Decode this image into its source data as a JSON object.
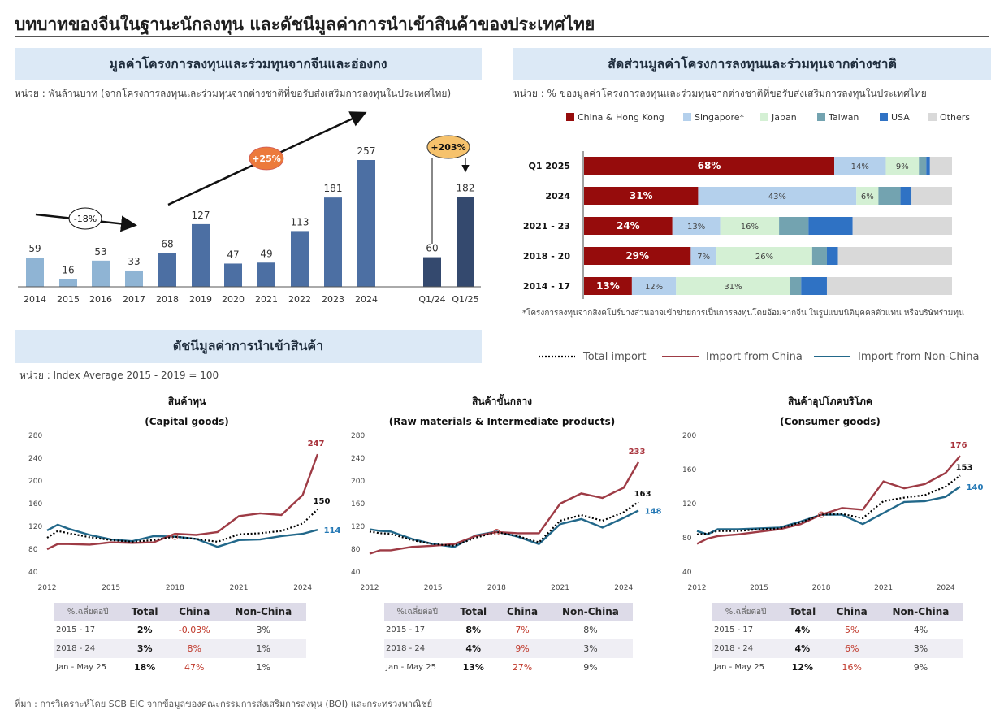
{
  "page": {
    "title": "บทบาทของจีนในฐานะนักลงทุน และดัชนีมูลค่าการนำเข้าสินค้าของประเทศไทย",
    "source": "ที่มา : การวิเคราะห์โดย SCB EIC จากข้อมูลของคณะกรรมการส่งเสริมการลงทุน (BOI) และกระทรวงพาณิชย์"
  },
  "investment_panel": {
    "heading": "มูลค่าโครงการลงทุนและร่วมทุนจากจีนและฮ่องกง",
    "unit": "หน่วย : พันล้านบาท (จากโครงการลงทุนและร่วมทุนจากต่างชาติที่ขอรับส่งเสริมการลงทุนในประเทศไทย)",
    "annotations": {
      "decline": "-18%",
      "growth": "+25%",
      "q1_growth": "+203%"
    }
  },
  "share_panel": {
    "heading": "สัดส่วนมูลค่าโครงการลงทุนและร่วมทุนจากต่างชาติ",
    "unit": "หน่วย : % ของมูลค่าโครงการลงทุนและร่วมทุนจากต่างชาติที่ขอรับส่งเสริมการลงทุนในประเทศไทย",
    "footnote": "*โครงการลงทุนจากสิงคโปร์บางส่วนอาจเข้าข่ายการเป็นการลงทุนโดยอ้อมจากจีน  ในรูปแบบนิติบุคคลตัวแทน  หรือบริษัทร่วมทุน"
  },
  "import_panel": {
    "heading": "ดัชนีมูลค่าการนำเข้าสินค้า",
    "unit": "หน่วย : Index Average 2015 - 2019 = 100",
    "legend": [
      {
        "name": "Total import",
        "color": "#000000",
        "style": "dotted"
      },
      {
        "name": "Import from China",
        "color": "#9e3b45",
        "style": "solid"
      },
      {
        "name": "Import from Non-China",
        "color": "#22688a",
        "style": "solid"
      }
    ]
  },
  "chart_data": [
    {
      "type": "bar",
      "categories": [
        "2014",
        "2015",
        "2016",
        "2017",
        "2018",
        "2019",
        "2020",
        "2021",
        "2022",
        "2023",
        "2024",
        "Q1/24",
        "Q1/25"
      ],
      "values": [
        59,
        16,
        53,
        33,
        68,
        127,
        47,
        49,
        113,
        181,
        257,
        60,
        182
      ],
      "ylim": [
        0,
        290
      ],
      "colors": {
        "early": "#8fb4d4",
        "mid": "#4c6fa3",
        "quarter": "#34496e"
      }
    },
    {
      "type": "bar",
      "orientation": "horizontal-stacked-100",
      "categories": [
        "Q1 2025",
        "2024",
        "2021 - 23",
        "2018 - 20",
        "2014 - 17"
      ],
      "series": [
        {
          "name": "China & Hong Kong",
          "color": "#960c0c",
          "values": [
            68,
            31,
            24,
            29,
            13
          ]
        },
        {
          "name": "Singapore*",
          "color": "#b4d0ec",
          "values": [
            14,
            43,
            13,
            7,
            12
          ]
        },
        {
          "name": "Japan",
          "color": "#d4f0d4",
          "values": [
            9,
            6,
            16,
            26,
            31
          ]
        },
        {
          "name": "Taiwan",
          "color": "#73a3b0",
          "values": [
            2,
            6,
            8,
            4,
            3
          ]
        },
        {
          "name": "USA",
          "color": "#2f72c4",
          "values": [
            1,
            3,
            12,
            3,
            7
          ]
        },
        {
          "name": "Others",
          "color": "#d9d9d9",
          "values": [
            6,
            11,
            27,
            31,
            34
          ]
        }
      ]
    },
    {
      "type": "line",
      "title": "สินค้าทุน",
      "subtitle": "(Capital goods)",
      "ylim": [
        40,
        280
      ],
      "yticks": [
        40,
        80,
        120,
        160,
        200,
        240,
        280
      ],
      "xticks": [
        "2012",
        "2015",
        "2018",
        "2021",
        "2024"
      ],
      "x": [
        2012,
        2012.5,
        2013,
        2014,
        2015,
        2016,
        2017,
        2018,
        2019,
        2020,
        2021,
        2022,
        2023,
        2024,
        2024.7
      ],
      "series": [
        {
          "name": "Total import",
          "values": [
            100,
            112,
            108,
            101,
            96,
            93,
            96,
            102,
            98,
            93,
            106,
            108,
            112,
            125,
            150
          ]
        },
        {
          "name": "Import from China",
          "values": [
            80,
            89,
            89,
            88,
            92,
            91,
            92,
            107,
            105,
            110,
            138,
            143,
            140,
            175,
            247
          ]
        },
        {
          "name": "Import from Non-China",
          "values": [
            113,
            123,
            116,
            105,
            97,
            94,
            103,
            102,
            98,
            84,
            96,
            97,
            103,
            107,
            114
          ]
        }
      ],
      "end_labels": {
        "total": "150",
        "china": "247",
        "non_china": "114"
      }
    },
    {
      "type": "line",
      "title": "สินค้าขั้นกลาง",
      "subtitle": "(Raw materials & Intermediate products)",
      "ylim": [
        40,
        280
      ],
      "yticks": [
        40,
        80,
        120,
        160,
        200,
        240,
        280
      ],
      "xticks": [
        "2012",
        "2015",
        "2018",
        "2021",
        "2024"
      ],
      "x": [
        2012,
        2012.5,
        2013,
        2014,
        2015,
        2016,
        2017,
        2018,
        2019,
        2020,
        2021,
        2022,
        2023,
        2024,
        2024.7
      ],
      "series": [
        {
          "name": "Total import",
          "values": [
            111,
            108,
            107,
            96,
            89,
            86,
            100,
            110,
            103,
            92,
            130,
            140,
            130,
            145,
            163
          ]
        },
        {
          "name": "Import from China",
          "values": [
            72,
            78,
            78,
            84,
            86,
            89,
            103,
            110,
            108,
            108,
            160,
            178,
            170,
            188,
            233
          ]
        },
        {
          "name": "Import from Non-China",
          "values": [
            115,
            112,
            111,
            98,
            89,
            84,
            104,
            111,
            102,
            89,
            124,
            133,
            118,
            135,
            148
          ]
        }
      ],
      "end_labels": {
        "total": "163",
        "china": "233",
        "non_china": "148"
      }
    },
    {
      "type": "line",
      "title": "สินค้าอุปโภคบริโภค",
      "subtitle": "(Consumer goods)",
      "ylim": [
        40,
        200
      ],
      "yticks": [
        40,
        80,
        120,
        160,
        200
      ],
      "xticks": [
        "2012",
        "2015",
        "2018",
        "2021",
        "2024"
      ],
      "x": [
        2012,
        2012.5,
        2013,
        2014,
        2015,
        2016,
        2017,
        2018,
        2019,
        2020,
        2021,
        2022,
        2023,
        2024,
        2024.7
      ],
      "series": [
        {
          "name": "Total import",
          "values": [
            84,
            85,
            88,
            88,
            90,
            91,
            98,
            107,
            108,
            103,
            123,
            127,
            130,
            140,
            153
          ]
        },
        {
          "name": "Import from China",
          "values": [
            73,
            79,
            82,
            84,
            87,
            90,
            96,
            107,
            115,
            113,
            146,
            138,
            143,
            156,
            176
          ]
        },
        {
          "name": "Import from Non-China",
          "values": [
            88,
            84,
            90,
            90,
            91,
            92,
            99,
            107,
            107,
            96,
            109,
            122,
            123,
            128,
            140
          ]
        }
      ],
      "end_labels": {
        "total": "153",
        "china": "176",
        "non_china": "140"
      }
    }
  ],
  "growth_tables": [
    {
      "headers": [
        "%เฉลี่ยต่อปี",
        "Total",
        "China",
        "Non-China"
      ],
      "rows": [
        [
          "2015 - 17",
          "2%",
          "-0.03%",
          "3%"
        ],
        [
          "2018 - 24",
          "3%",
          "8%",
          "1%"
        ],
        [
          "Jan - May 25",
          "18%",
          "47%",
          "1%"
        ]
      ]
    },
    {
      "headers": [
        "%เฉลี่ยต่อปี",
        "Total",
        "China",
        "Non-China"
      ],
      "rows": [
        [
          "2015 - 17",
          "8%",
          "7%",
          "8%"
        ],
        [
          "2018 - 24",
          "4%",
          "9%",
          "3%"
        ],
        [
          "Jan - May 25",
          "13%",
          "27%",
          "9%"
        ]
      ]
    },
    {
      "headers": [
        "%เฉลี่ยต่อปี",
        "Total",
        "China",
        "Non-China"
      ],
      "rows": [
        [
          "2015 - 17",
          "4%",
          "5%",
          "4%"
        ],
        [
          "2018 - 24",
          "4%",
          "6%",
          "3%"
        ],
        [
          "Jan - May 25",
          "12%",
          "16%",
          "9%"
        ]
      ]
    }
  ]
}
